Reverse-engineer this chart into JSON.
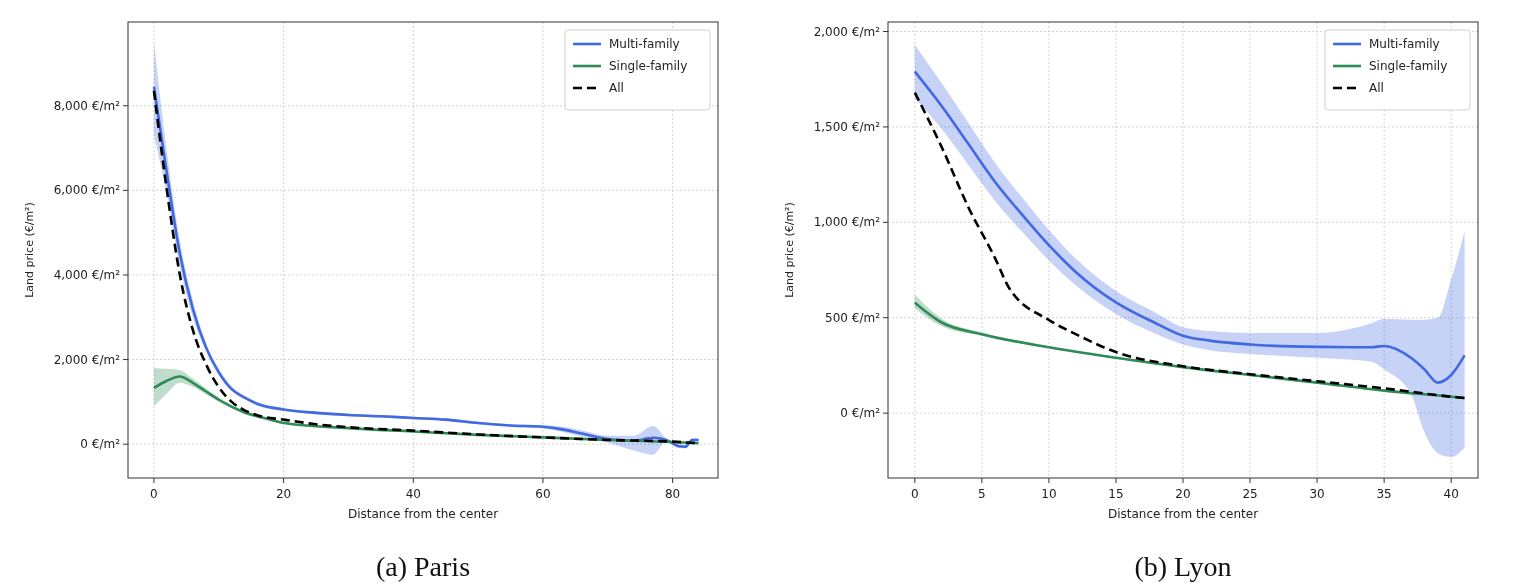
{
  "chart_data": [
    {
      "type": "line",
      "title": "(a) Paris",
      "xlabel": "Distance from the center",
      "ylabel": "Land price (€/m²)",
      "xlim": [
        -4,
        87
      ],
      "ylim": [
        -800,
        9980
      ],
      "xticks": [
        0,
        20,
        40,
        60,
        80
      ],
      "yticks": [
        {
          "value": 0,
          "label": "0 €/m²"
        },
        {
          "value": 2000,
          "label": "2,000 €/m²"
        },
        {
          "value": 4000,
          "label": "4,000 €/m²"
        },
        {
          "value": 6000,
          "label": "6,000 €/m²"
        },
        {
          "value": 8000,
          "label": "8,000 €/m²"
        }
      ],
      "grid": true,
      "legend": "top right",
      "series": [
        {
          "name": "Multi-family",
          "color": "#4169e1",
          "line_style": "solid",
          "x": [
            0,
            2,
            4,
            6,
            8,
            10,
            12,
            14,
            16,
            20,
            25,
            30,
            35,
            40,
            45,
            50,
            55,
            60,
            63,
            66,
            70,
            74,
            77,
            79,
            81,
            82,
            83,
            84
          ],
          "values": [
            8450,
            6400,
            4500,
            3200,
            2300,
            1700,
            1300,
            1100,
            950,
            820,
            740,
            690,
            660,
            620,
            580,
            500,
            440,
            410,
            350,
            250,
            120,
            80,
            150,
            100,
            -50,
            -60,
            100,
            100
          ],
          "lower": [
            7300,
            5900,
            4200,
            3000,
            2200,
            1630,
            1250,
            1060,
            910,
            790,
            710,
            660,
            630,
            590,
            550,
            470,
            410,
            370,
            290,
            180,
            40,
            -150,
            -250,
            60,
            -90,
            -100,
            60,
            60
          ],
          "upper": [
            9500,
            6900,
            4800,
            3400,
            2400,
            1770,
            1350,
            1140,
            990,
            850,
            770,
            720,
            690,
            650,
            610,
            530,
            470,
            450,
            410,
            320,
            200,
            200,
            430,
            140,
            -10,
            -20,
            140,
            140
          ]
        },
        {
          "name": "Single-family",
          "color": "#2e8b57",
          "line_style": "solid",
          "x": [
            0,
            2,
            4,
            6,
            8,
            10,
            14,
            18,
            20,
            30,
            40,
            50,
            60,
            70,
            80,
            84
          ],
          "values": [
            1330,
            1500,
            1600,
            1450,
            1250,
            1050,
            750,
            580,
            500,
            380,
            300,
            220,
            160,
            100,
            50,
            20
          ],
          "lower": [
            900,
            1200,
            1450,
            1350,
            1180,
            1000,
            710,
            550,
            480,
            365,
            290,
            210,
            150,
            90,
            40,
            10
          ],
          "upper": [
            1800,
            1780,
            1750,
            1550,
            1320,
            1100,
            790,
            610,
            520,
            395,
            310,
            230,
            170,
            110,
            60,
            30
          ]
        },
        {
          "name": "All",
          "color": "#000000",
          "line_style": "dashed",
          "x": [
            0,
            2,
            4,
            6,
            8,
            10,
            12,
            14,
            16,
            20,
            25,
            30,
            40,
            50,
            60,
            70,
            80,
            84
          ],
          "values": [
            8350,
            6000,
            4000,
            2700,
            1900,
            1350,
            1000,
            800,
            680,
            580,
            470,
            400,
            320,
            230,
            160,
            100,
            60,
            20
          ]
        }
      ]
    },
    {
      "type": "line",
      "title": "(b) Lyon",
      "xlabel": "Distance from the center",
      "ylabel": "Land price (€/m²)",
      "xlim": [
        -2,
        42
      ],
      "ylim": [
        -340,
        2050
      ],
      "xticks": [
        0,
        5,
        10,
        15,
        20,
        25,
        30,
        35,
        40
      ],
      "yticks": [
        {
          "value": 0,
          "label": "0 €/m²"
        },
        {
          "value": 500,
          "label": "500 €/m²"
        },
        {
          "value": 1000,
          "label": "1,000 €/m²"
        },
        {
          "value": 1500,
          "label": "1,500 €/m²"
        },
        {
          "value": 2000,
          "label": "2,000 €/m²"
        }
      ],
      "grid": true,
      "legend": "top right",
      "series": [
        {
          "name": "Multi-family",
          "color": "#4169e1",
          "line_style": "solid",
          "x": [
            0,
            2,
            4,
            6,
            8,
            10,
            12,
            15,
            18,
            20,
            22,
            25,
            30,
            34,
            35,
            37,
            38,
            39,
            40,
            41
          ],
          "values": [
            1790,
            1610,
            1410,
            1210,
            1040,
            880,
            740,
            580,
            470,
            406,
            380,
            360,
            347,
            345,
            352,
            290,
            230,
            160,
            200,
            303
          ],
          "lower": [
            1650,
            1490,
            1300,
            1110,
            950,
            800,
            670,
            520,
            415,
            360,
            330,
            310,
            290,
            270,
            229,
            100,
            -100,
            -210,
            -230,
            -180
          ],
          "upper": [
            1930,
            1730,
            1520,
            1310,
            1130,
            960,
            810,
            640,
            525,
            450,
            430,
            420,
            420,
            470,
            493,
            490,
            490,
            500,
            700,
            950
          ]
        },
        {
          "name": "Single-family",
          "color": "#2e8b57",
          "line_style": "solid",
          "x": [
            0,
            2,
            5,
            10,
            15,
            20,
            25,
            30,
            35,
            40,
            41
          ],
          "values": [
            579,
            475,
            414,
            345,
            290,
            241,
            200,
            160,
            118,
            86,
            79
          ],
          "lower": [
            550,
            455,
            405,
            340,
            285,
            236,
            195,
            155,
            113,
            80,
            72
          ],
          "upper": [
            620,
            495,
            423,
            350,
            295,
            246,
            205,
            165,
            123,
            92,
            86
          ]
        },
        {
          "name": "All",
          "color": "#000000",
          "line_style": "dashed",
          "x": [
            0,
            2,
            4,
            6,
            7,
            10,
            12,
            15,
            20,
            25,
            30,
            35,
            40,
            41
          ],
          "values": [
            1680,
            1395,
            1078,
            810,
            660,
            488,
            414,
            320,
            246,
            204,
            167,
            130,
            86,
            79
          ]
        }
      ]
    }
  ]
}
